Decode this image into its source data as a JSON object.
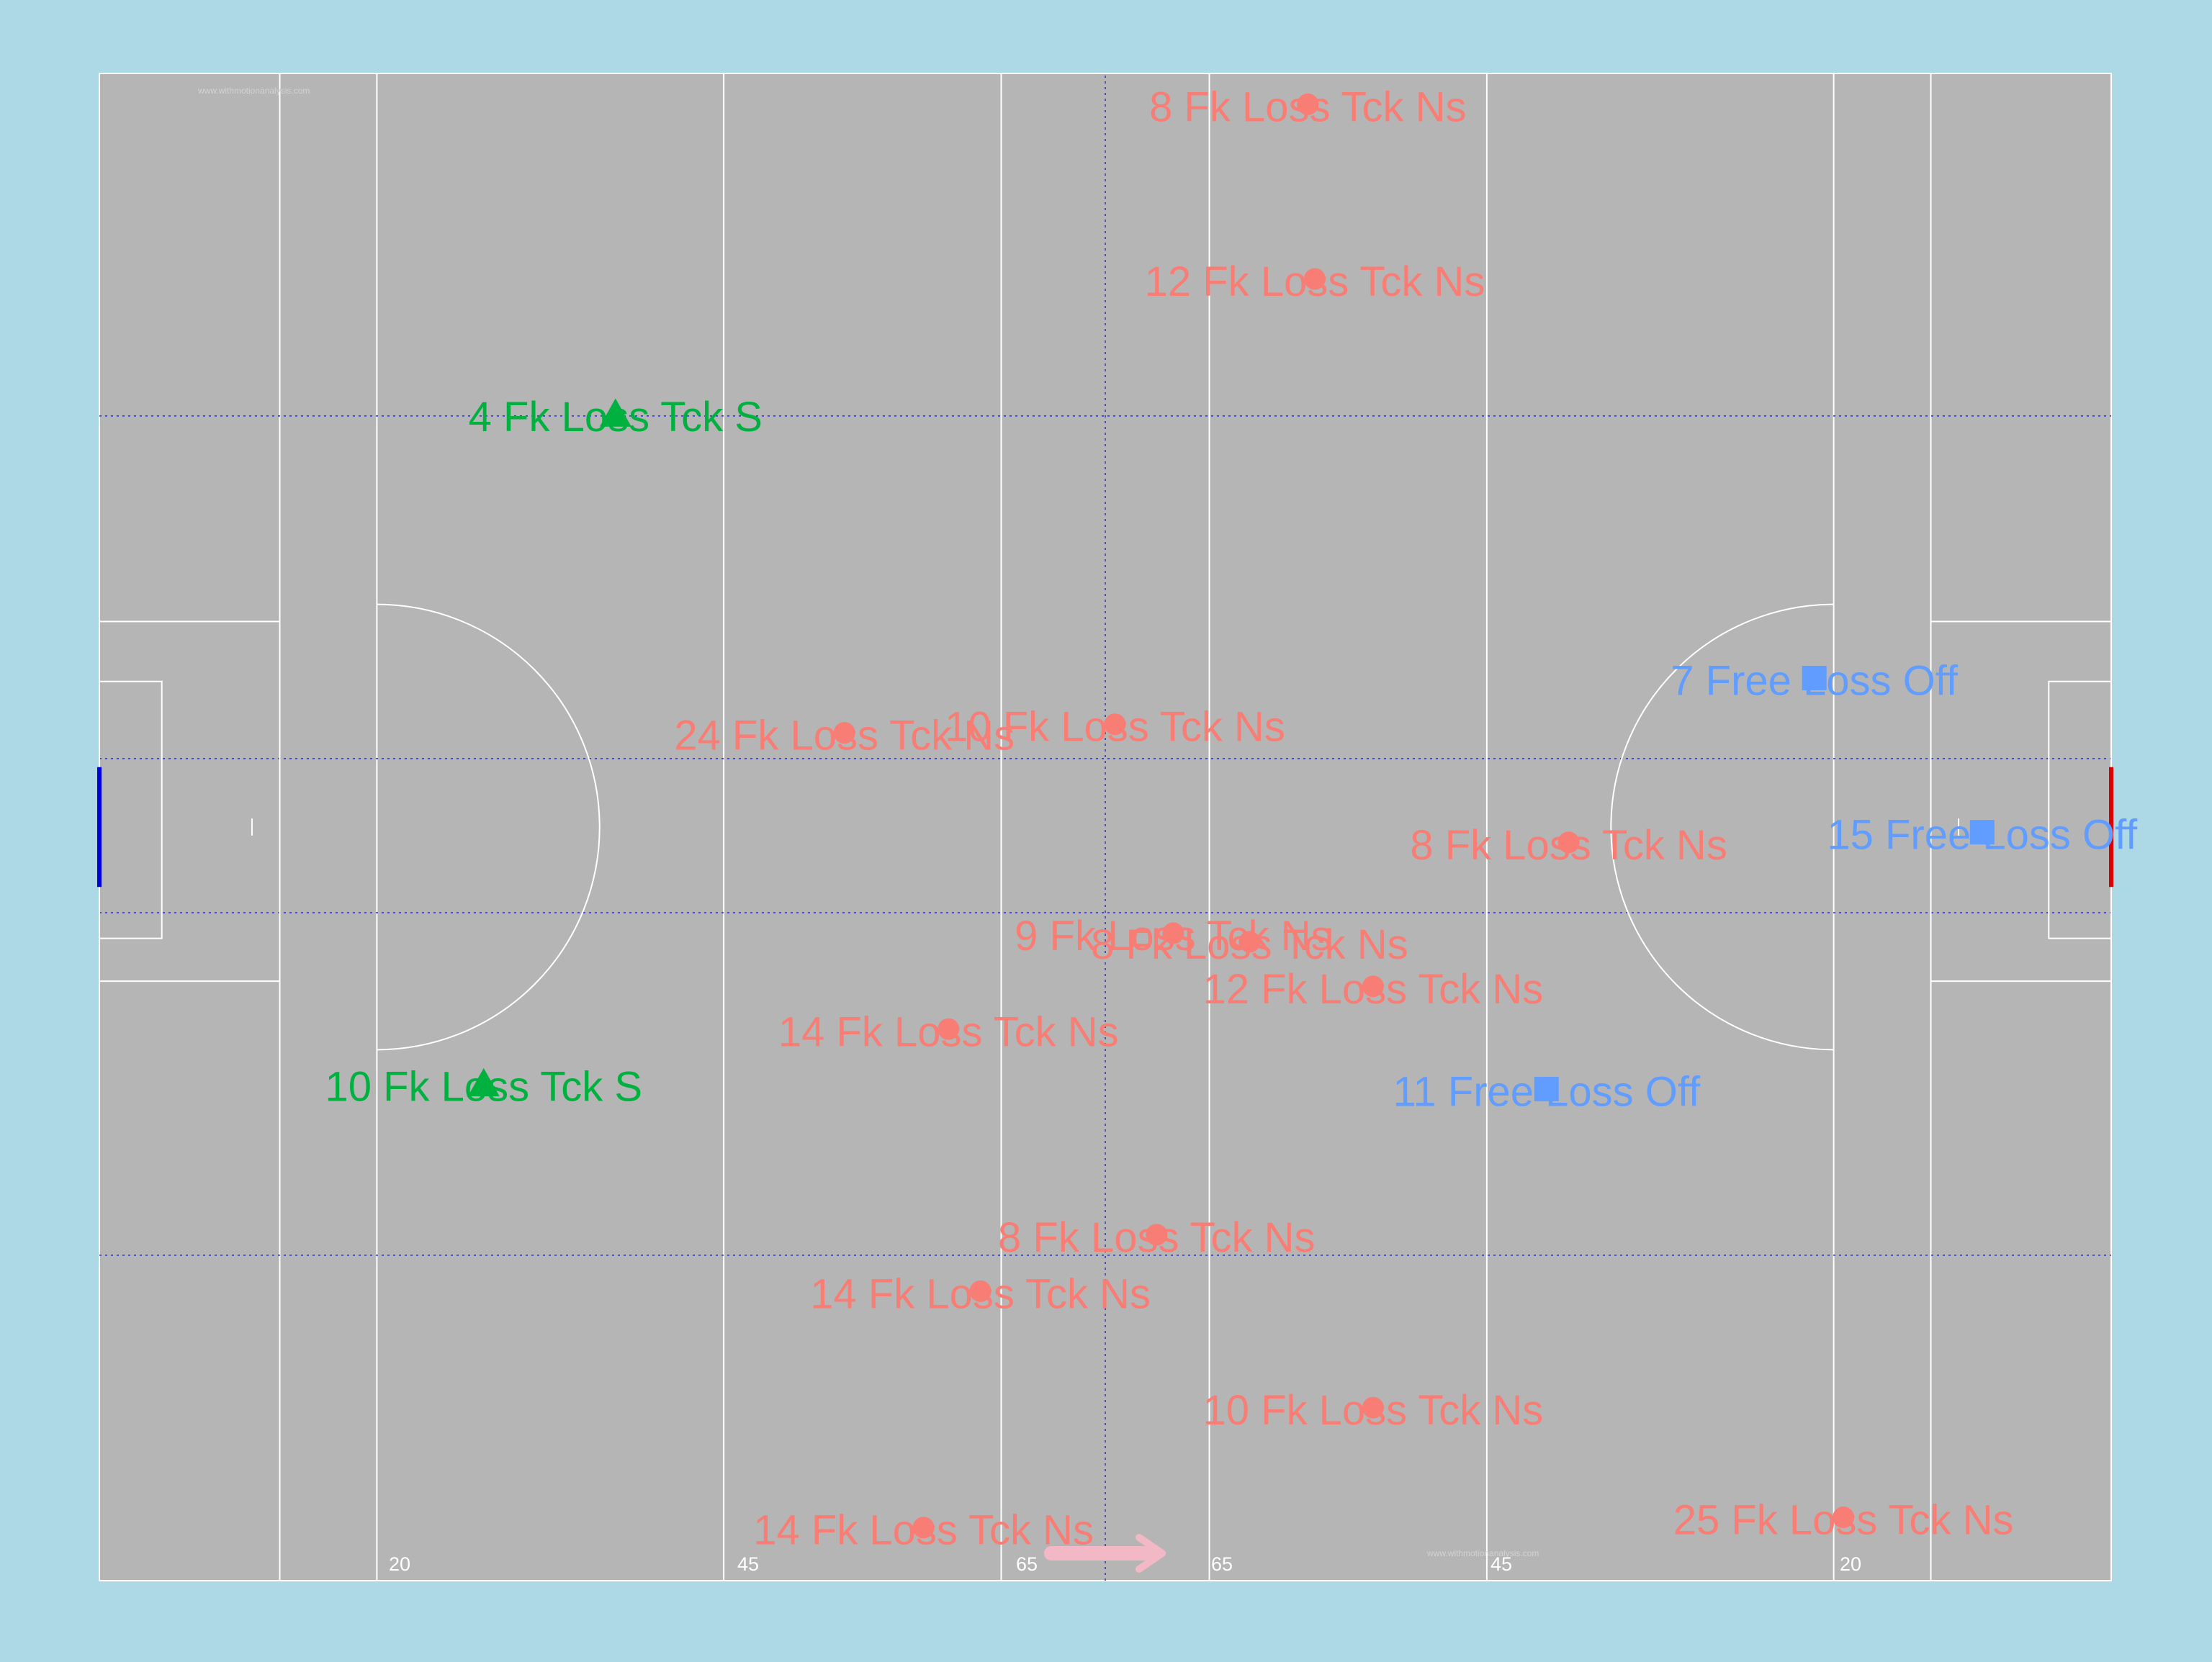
{
  "colors": {
    "background": "#ADD8E6",
    "pitch": "#B5B5B5",
    "lines": "#FFFFFF",
    "quarter_lines": "#2B2BCC",
    "left_goal": "#0000DD",
    "right_goal": "#DD0000",
    "direction_arrow": "#F2B8C6",
    "watermark": "#D2D2D2"
  },
  "watermark": "www.withmotionanalysis.com",
  "direction_arrow_icon": "right-arrow-icon",
  "pitch_distance_labels": [
    "20",
    "45",
    "65",
    "65",
    "45",
    "20"
  ],
  "chart_data": {
    "type": "scatter",
    "title": "",
    "xlabel": "",
    "ylabel": "",
    "grid": false,
    "legend": "none",
    "x_unit": "metres from left end line",
    "y_unit": "metres from bottom sideline",
    "xlim": [
      0,
      145
    ],
    "ylim": [
      0,
      88
    ],
    "series": [
      {
        "marker": "circle",
        "color": "#F87D74",
        "points": [
          {
            "x": 87.1,
            "y": 86.2,
            "label": "8 Fk Loss Tck Ns"
          },
          {
            "x": 87.6,
            "y": 76.0,
            "label": "12 Fk Loss Tck Ns"
          },
          {
            "x": 53.7,
            "y": 49.5,
            "label": "24 Fk Loss Tck Ns"
          },
          {
            "x": 73.2,
            "y": 50.0,
            "label": "10 Fk Loss Tck Ns"
          },
          {
            "x": 105.9,
            "y": 43.1,
            "label": "8 Fk Loss Tck Ns"
          },
          {
            "x": 77.4,
            "y": 37.8,
            "label": "9 Fk Loss Tck Ns"
          },
          {
            "x": 82.9,
            "y": 37.3,
            "label": "8 Fk Loss Tck Ns"
          },
          {
            "x": 91.8,
            "y": 34.7,
            "label": "12 Fk Loss Tck Ns"
          },
          {
            "x": 61.2,
            "y": 32.2,
            "label": "14 Fk Loss Tck Ns"
          },
          {
            "x": 76.2,
            "y": 20.2,
            "label": "8 Fk Loss Tck Ns"
          },
          {
            "x": 63.5,
            "y": 16.9,
            "label": "14 Fk Loss Tck Ns"
          },
          {
            "x": 91.8,
            "y": 10.1,
            "label": "10 Fk Loss Tck Ns"
          },
          {
            "x": 59.4,
            "y": 3.1,
            "label": "14 Fk Loss Tck Ns"
          },
          {
            "x": 125.7,
            "y": 3.7,
            "label": "25 Fk Loss Tck Ns"
          }
        ]
      },
      {
        "marker": "triangle",
        "color": "#00B13F",
        "points": [
          {
            "x": 37.2,
            "y": 68.1,
            "label": "4 Fk Loss Tck S"
          },
          {
            "x": 27.7,
            "y": 29.0,
            "label": "10 Fk Loss Tck S"
          }
        ]
      },
      {
        "marker": "square",
        "color": "#619CFF",
        "points": [
          {
            "x": 123.6,
            "y": 52.7,
            "label": "7 Free Loss Off"
          },
          {
            "x": 135.7,
            "y": 43.7,
            "label": "15 Free Loss Off"
          },
          {
            "x": 104.3,
            "y": 28.7,
            "label": "11 Free Loss Off"
          }
        ]
      }
    ]
  }
}
